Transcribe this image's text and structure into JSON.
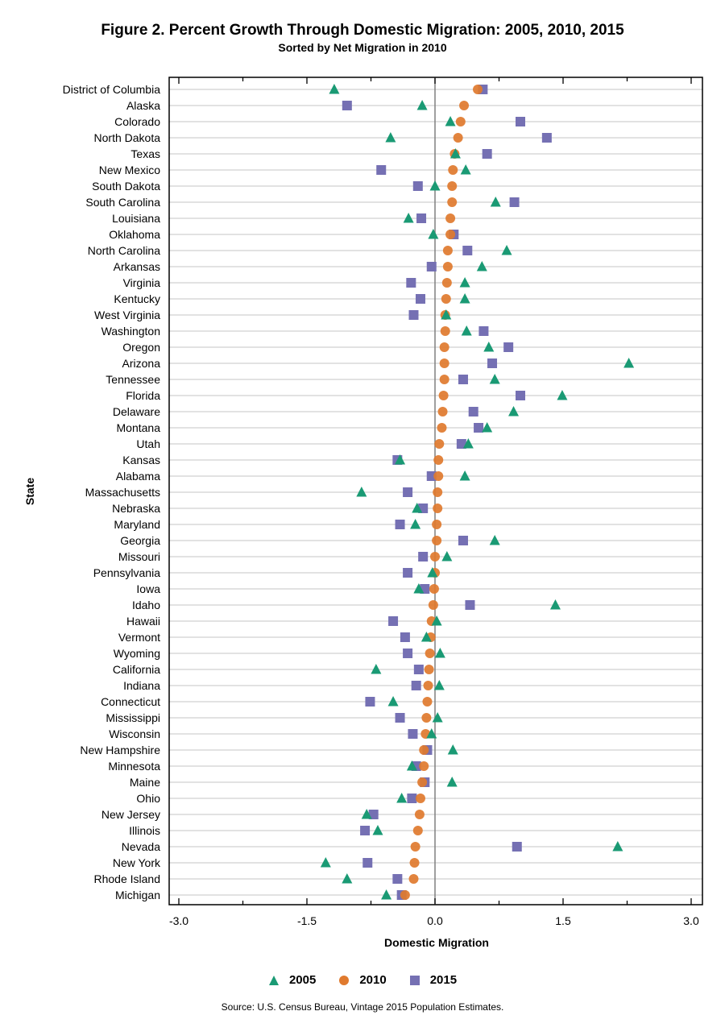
{
  "title": "Figure 2. Percent Growth Through Domestic Migration: 2005, 2010, 2015",
  "subtitle": "Sorted by Net Migration in 2010",
  "source": "Source: U.S. Census Bureau, Vintage 2015 Population Estimates.",
  "colors": {
    "2005": "#1a9a74",
    "2010": "#e07a2e",
    "2015": "#7570b3"
  },
  "chart_data": {
    "type": "scatter",
    "title": "Figure 2. Percent Growth Through Domestic Migration: 2005, 2010, 2015",
    "subtitle": "Sorted by Net Migration in 2010",
    "xlabel": "Domestic Migration",
    "ylabel": "State",
    "xlim": [
      -3.0,
      3.0
    ],
    "xticks": [
      "-3.0",
      "-1.5",
      "0.0",
      "1.5",
      "3.0"
    ],
    "xtick_values": [
      -3.0,
      -1.5,
      0.0,
      1.5,
      3.0
    ],
    "grid": "horizontal",
    "legend_position": "bottom",
    "categories": [
      "District of Columbia",
      "Alaska",
      "Colorado",
      "North Dakota",
      "Texas",
      "New Mexico",
      "South Dakota",
      "South Carolina",
      "Louisiana",
      "Oklahoma",
      "North Carolina",
      "Arkansas",
      "Virginia",
      "Kentucky",
      "West Virginia",
      "Washington",
      "Oregon",
      "Arizona",
      "Tennessee",
      "Florida",
      "Delaware",
      "Montana",
      "Utah",
      "Kansas",
      "Alabama",
      "Massachusetts",
      "Nebraska",
      "Maryland",
      "Georgia",
      "Missouri",
      "Pennsylvania",
      "Iowa",
      "Idaho",
      "Hawaii",
      "Vermont",
      "Wyoming",
      "California",
      "Indiana",
      "Connecticut",
      "Mississippi",
      "Wisconsin",
      "New Hampshire",
      "Minnesota",
      "Maine",
      "Ohio",
      "New Jersey",
      "Illinois",
      "Nevada",
      "New York",
      "Rhode Island",
      "Michigan"
    ],
    "series": [
      {
        "name": "2005",
        "marker": "triangle",
        "values": [
          -1.18,
          -0.15,
          0.18,
          -0.52,
          0.24,
          0.36,
          0.0,
          0.71,
          -0.31,
          -0.02,
          0.84,
          0.55,
          0.35,
          0.35,
          0.13,
          0.37,
          0.63,
          2.27,
          0.7,
          1.49,
          0.92,
          0.61,
          0.39,
          -0.41,
          0.35,
          -0.86,
          -0.21,
          -0.23,
          0.7,
          0.14,
          -0.03,
          -0.19,
          1.41,
          0.02,
          -0.1,
          0.06,
          -0.69,
          0.05,
          -0.49,
          0.03,
          -0.04,
          0.21,
          -0.27,
          0.2,
          -0.39,
          -0.8,
          -0.67,
          2.14,
          -1.28,
          -1.03,
          -0.57
        ]
      },
      {
        "name": "2010",
        "marker": "circle",
        "values": [
          0.5,
          0.34,
          0.3,
          0.27,
          0.23,
          0.21,
          0.2,
          0.2,
          0.18,
          0.18,
          0.15,
          0.15,
          0.14,
          0.13,
          0.12,
          0.12,
          0.11,
          0.11,
          0.11,
          0.1,
          0.09,
          0.08,
          0.05,
          0.04,
          0.04,
          0.03,
          0.03,
          0.02,
          0.02,
          0.0,
          0.0,
          -0.01,
          -0.02,
          -0.04,
          -0.05,
          -0.06,
          -0.07,
          -0.08,
          -0.09,
          -0.1,
          -0.11,
          -0.13,
          -0.13,
          -0.15,
          -0.17,
          -0.18,
          -0.2,
          -0.23,
          -0.24,
          -0.25,
          -0.35
        ]
      },
      {
        "name": "2015",
        "marker": "square",
        "values": [
          0.56,
          -1.03,
          1.0,
          1.31,
          0.61,
          -0.63,
          -0.2,
          0.93,
          -0.16,
          0.22,
          0.38,
          -0.04,
          -0.28,
          -0.17,
          -0.25,
          0.57,
          0.86,
          0.67,
          0.33,
          1.0,
          0.45,
          0.51,
          0.31,
          -0.44,
          -0.04,
          -0.32,
          -0.14,
          -0.41,
          0.33,
          -0.14,
          -0.32,
          -0.12,
          0.41,
          -0.49,
          -0.35,
          -0.32,
          -0.19,
          -0.22,
          -0.76,
          -0.41,
          -0.26,
          -0.09,
          -0.22,
          -0.12,
          -0.27,
          -0.72,
          -0.82,
          0.96,
          -0.79,
          -0.44,
          -0.39
        ]
      }
    ]
  }
}
